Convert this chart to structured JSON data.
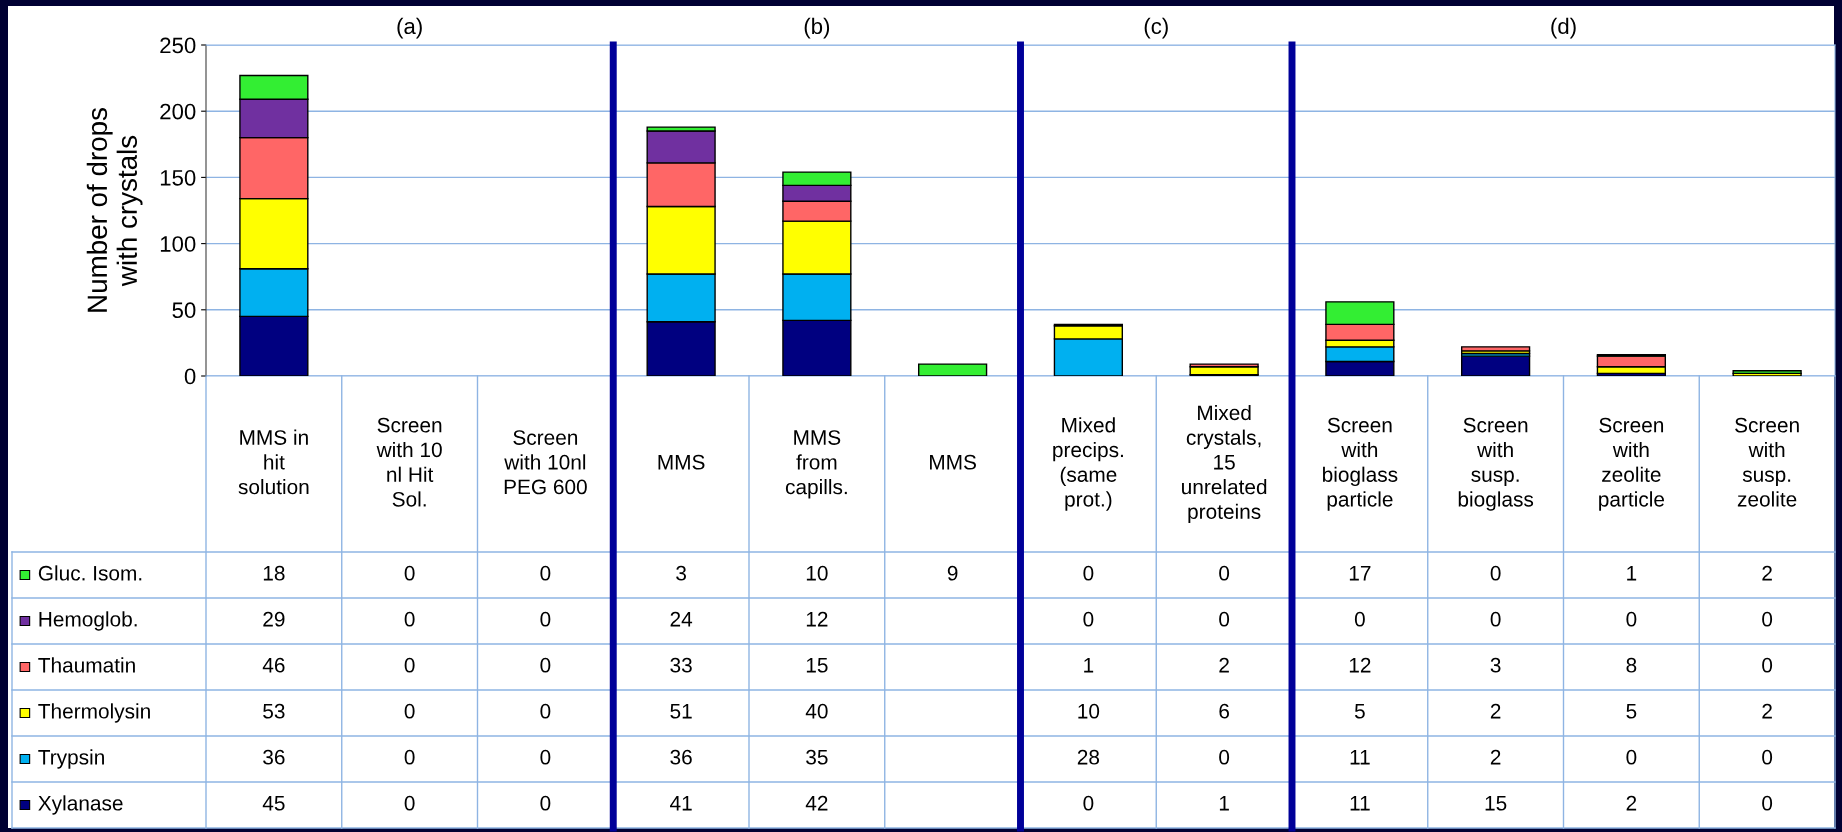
{
  "chart_data": [
    {
      "type": "bar",
      "stacked": true,
      "title": "(a)",
      "ylabel": "Number of drops\nwith crystals",
      "categories": [
        "MMS in\nhit\nsolution",
        "Screen\nwith 10\nnl Hit\nSol.",
        "Screen\nwith 10nl\nPEG 600"
      ],
      "series": [
        {
          "name": "Xylanase",
          "color": "#000080",
          "values": [
            45,
            0,
            0
          ]
        },
        {
          "name": "Trypsin",
          "color": "#00b0f0",
          "values": [
            36,
            0,
            0
          ]
        },
        {
          "name": "Thermolysin",
          "color": "#ffff00",
          "values": [
            53,
            0,
            0
          ]
        },
        {
          "name": "Thaumatin",
          "color": "#ff6666",
          "values": [
            46,
            0,
            0
          ]
        },
        {
          "name": "Hemoglob.",
          "color": "#7030a0",
          "values": [
            29,
            0,
            0
          ]
        },
        {
          "name": "Gluc. Isom.",
          "color": "#33ee33",
          "values": [
            18,
            0,
            0
          ]
        }
      ],
      "ylim": [
        0,
        250
      ],
      "yticks": [
        0,
        50,
        100,
        150,
        200,
        250
      ],
      "tick_labels": "y",
      "grid": "y",
      "legend": "bottom left",
      "data_labels": true
    },
    {
      "type": "bar",
      "stacked": true,
      "title": "(b)",
      "categories": [
        "MMS",
        "MMS\nfrom\ncapills.",
        "MMS"
      ],
      "series": [
        {
          "color": "#000080",
          "values": [
            41,
            42,
            null
          ]
        },
        {
          "color": "#00b0f0",
          "values": [
            36,
            35,
            null
          ]
        },
        {
          "color": "#ffff00",
          "values": [
            51,
            40,
            null
          ]
        },
        {
          "color": "#ff6666",
          "values": [
            33,
            15,
            null
          ]
        },
        {
          "color": "#7030a0",
          "values": [
            24,
            12,
            null
          ]
        },
        {
          "color": "#33ee33",
          "values": [
            3,
            10,
            9
          ]
        }
      ],
      "ylim": [
        0,
        250
      ],
      "yticks": [
        0,
        50,
        100,
        150,
        200,
        250
      ],
      "tick_labels": false,
      "grid": "y",
      "data_labels": true
    },
    {
      "type": "bar",
      "stacked": true,
      "title": "(c)",
      "categories": [
        "Mixed\nprecips.\n(same\nprot.)",
        "Mixed\ncrystals,\n15\nunrelated\nproteins"
      ],
      "series": [
        {
          "color": "#000080",
          "values": [
            0,
            1
          ],
          "value_labels": [
            "0",
            "1"
          ]
        },
        {
          "color": "#00b0f0",
          "values": [
            28,
            0
          ],
          "value_labels": [
            "28",
            "0"
          ]
        },
        {
          "color": "#ffff00",
          "values": [
            10,
            6
          ],
          "value_labels": [
            "10",
            "6"
          ]
        },
        {
          "color": "#ff6666",
          "values": [
            1,
            2
          ],
          "value_labels": [
            "1",
            "2"
          ]
        },
        {
          "color": "#7030a0",
          "values": [
            0,
            0
          ],
          "value_labels": [
            "0",
            "0"
          ]
        },
        {
          "color": "#33ee33",
          "values": [
            0,
            0
          ],
          "value_labels": [
            "0",
            "0"
          ]
        }
      ],
      "ylim": [
        0,
        250
      ],
      "yticks": [
        0,
        50,
        100,
        150,
        200,
        250
      ],
      "tick_labels": false,
      "grid": "y"
    },
    {
      "type": "bar",
      "stacked": true,
      "title": "(d)",
      "categories": [
        "Screen\nwith\nbioglass\nparticle",
        "Screen\nwith\nsusp.\nbioglass",
        "Screen\nwith\nzeolite\nparticle",
        "Screen\nwith\nsusp.\nzeolite"
      ],
      "series": [
        {
          "color": "#000080",
          "values": [
            11,
            15,
            2,
            0
          ]
        },
        {
          "color": "#00b0f0",
          "values": [
            11,
            2,
            0,
            0
          ]
        },
        {
          "color": "#ffff00",
          "values": [
            5,
            2,
            5,
            2
          ]
        },
        {
          "color": "#ff6666",
          "values": [
            12,
            3,
            8,
            0
          ]
        },
        {
          "color": "#7030a0",
          "values": [
            0,
            0,
            0,
            0
          ]
        },
        {
          "color": "#33ee33",
          "values": [
            17,
            0,
            1,
            2
          ]
        }
      ],
      "ylim": [
        0,
        250
      ],
      "yticks": [
        0,
        50,
        100,
        150,
        200,
        250
      ],
      "tick_labels": false,
      "grid": "y",
      "data_labels": true
    }
  ]
}
